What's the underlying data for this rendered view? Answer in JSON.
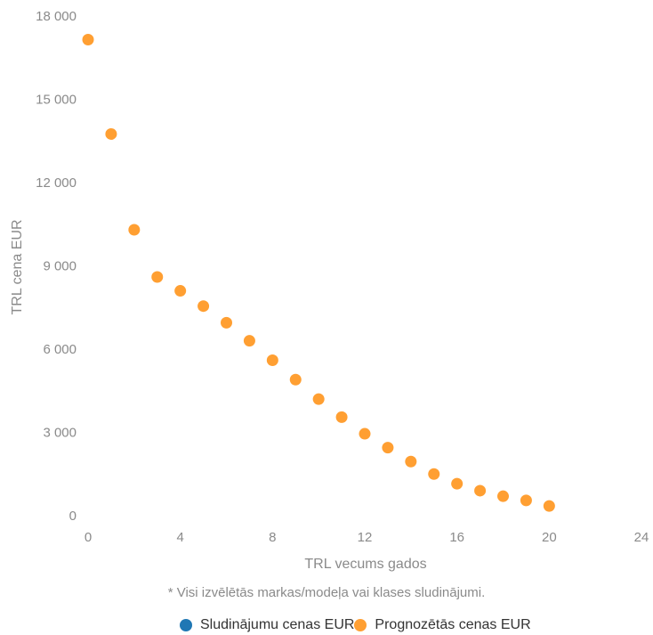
{
  "chart_data": {
    "type": "scatter",
    "xlabel": "TRL vecums gados",
    "ylabel": "TRL cena EUR",
    "xlim": [
      0,
      24
    ],
    "ylim": [
      0,
      18000
    ],
    "x_ticks": [
      0,
      4,
      8,
      12,
      16,
      20,
      24
    ],
    "y_ticks": [
      0,
      3000,
      6000,
      9000,
      12000,
      15000,
      18000
    ],
    "x_tick_labels": [
      "0",
      "4",
      "8",
      "12",
      "16",
      "20",
      "24"
    ],
    "y_tick_labels": [
      "0",
      "3 000",
      "6 000",
      "9 000",
      "12 000",
      "15 000",
      "18 000"
    ],
    "grid": false,
    "legend_position": "bottom",
    "series": [
      {
        "name": "Sludinājumu cenas EUR",
        "color": "#1f77b4",
        "points": []
      },
      {
        "name": "Prognozētās cenas EUR",
        "color": "#ff9f32",
        "points": [
          {
            "x": 0,
            "y": 17150
          },
          {
            "x": 1,
            "y": 13750
          },
          {
            "x": 2,
            "y": 10300
          },
          {
            "x": 3,
            "y": 8600
          },
          {
            "x": 4,
            "y": 8100
          },
          {
            "x": 5,
            "y": 7550
          },
          {
            "x": 6,
            "y": 6950
          },
          {
            "x": 7,
            "y": 6300
          },
          {
            "x": 8,
            "y": 5600
          },
          {
            "x": 9,
            "y": 4900
          },
          {
            "x": 10,
            "y": 4200
          },
          {
            "x": 11,
            "y": 3550
          },
          {
            "x": 12,
            "y": 2950
          },
          {
            "x": 13,
            "y": 2450
          },
          {
            "x": 14,
            "y": 1950
          },
          {
            "x": 15,
            "y": 1500
          },
          {
            "x": 16,
            "y": 1150
          },
          {
            "x": 17,
            "y": 900
          },
          {
            "x": 18,
            "y": 700
          },
          {
            "x": 19,
            "y": 550
          },
          {
            "x": 20,
            "y": 350
          }
        ]
      }
    ]
  },
  "footnote": "* Visi izvēlētās markas/modeļa vai klases sludinājumi.",
  "legend": {
    "items": [
      {
        "label": "Sludinājumu cenas EUR",
        "color": "#1f77b4"
      },
      {
        "label": "Prognozētās cenas EUR",
        "color": "#ff9f32"
      }
    ]
  }
}
